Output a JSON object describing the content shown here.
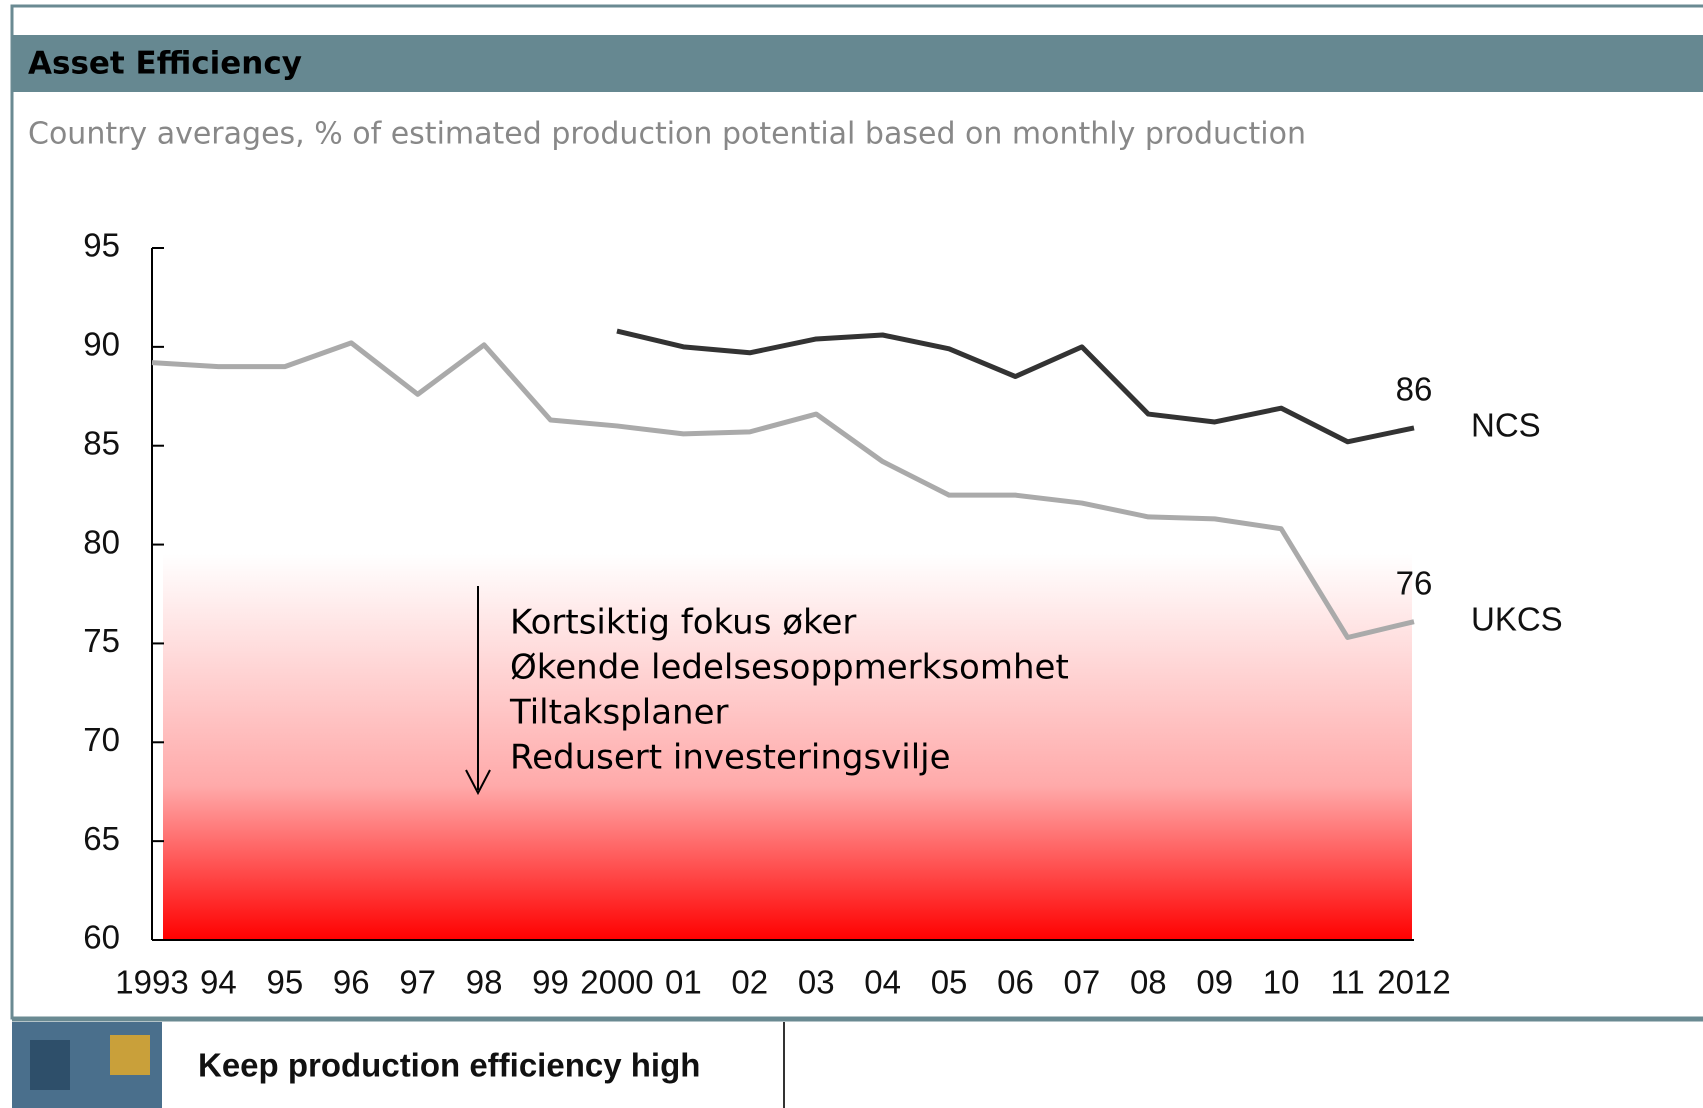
{
  "header": {
    "title": "Asset Efficiency"
  },
  "chart_data": {
    "type": "line",
    "subtitle": "Country averages, % of estimated production potential based on monthly production",
    "categories": [
      "1993",
      "94",
      "95",
      "96",
      "97",
      "98",
      "99",
      "2000",
      "01",
      "02",
      "03",
      "04",
      "05",
      "06",
      "07",
      "08",
      "09",
      "10",
      "11",
      "2012"
    ],
    "series": [
      {
        "name": "NCS",
        "color": "#333333",
        "values": [
          null,
          null,
          null,
          null,
          null,
          null,
          null,
          90.8,
          90.0,
          89.7,
          90.4,
          90.6,
          89.9,
          88.5,
          90.0,
          86.6,
          86.2,
          86.9,
          85.2,
          85.9
        ],
        "value_labels": [
          null,
          null,
          null,
          null,
          null,
          null,
          null,
          null,
          null,
          null,
          null,
          null,
          null,
          null,
          null,
          null,
          null,
          null,
          null,
          "86"
        ]
      },
      {
        "name": "UKCS",
        "color": "#aaaaaa",
        "values": [
          89.2,
          89.0,
          89.0,
          90.2,
          87.6,
          90.1,
          86.3,
          86.0,
          85.6,
          85.7,
          86.6,
          84.2,
          82.5,
          82.5,
          82.1,
          81.4,
          81.3,
          80.8,
          75.3,
          76.1
        ],
        "value_labels": [
          null,
          null,
          null,
          null,
          null,
          null,
          null,
          null,
          null,
          null,
          null,
          null,
          null,
          null,
          null,
          null,
          null,
          null,
          null,
          "76"
        ]
      }
    ],
    "ylim": [
      60,
      95
    ],
    "yticks": [
      60,
      65,
      70,
      75,
      80,
      85,
      90,
      95
    ],
    "annotation": [
      "Kortsiktig fokus øker",
      "Økende ledelsesoppmerksomhet",
      "Tiltaksplaner",
      "Redusert investeringsvilje"
    ]
  },
  "footer": {
    "text": "Keep production efficiency high"
  }
}
